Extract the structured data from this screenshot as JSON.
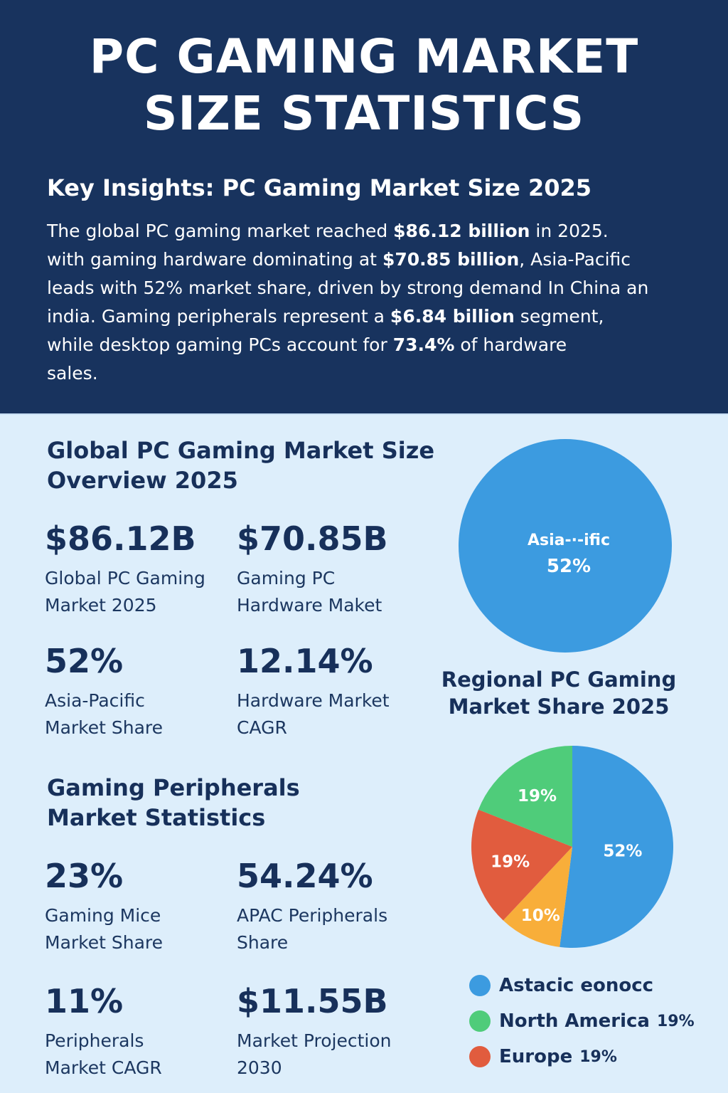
{
  "header": {
    "title_lines": [
      "PC GAMING MARKET",
      "SIZE STATISTICS"
    ],
    "insights_title": "Key Insights: PC Gaming Market Size 2025",
    "insights_lines": [
      [
        {
          "t": "The global PC gaming market reached ",
          "b": false
        },
        {
          "t": "$86.12 billion",
          "b": true
        },
        {
          "t": " in 2025.",
          "b": false
        }
      ],
      [
        {
          "t": "with gaming hardware dominating at ",
          "b": false
        },
        {
          "t": "$70.85 billion",
          "b": true
        },
        {
          "t": ", Asia-Pacific",
          "b": false
        }
      ],
      [
        {
          "t": "leads with 52% market share, driven by strong demand In China an",
          "b": false
        }
      ],
      [
        {
          "t": "india. Gaming peripherals represent a ",
          "b": false
        },
        {
          "t": "$6.84 billion",
          "b": true
        },
        {
          "t": " segment,",
          "b": false
        }
      ],
      [
        {
          "t": "while desktop gaming PCs account for ",
          "b": false
        },
        {
          "t": "73.4%",
          "b": true
        },
        {
          "t": " of hardware",
          "b": false
        }
      ],
      [
        {
          "t": "sales.",
          "b": false
        }
      ]
    ]
  },
  "overview": {
    "title_lines": [
      "Global PC Gaming Market Size",
      "Overview 2025"
    ],
    "stats": [
      {
        "value": "$86.12B",
        "label_lines": [
          "Global PC Gaming",
          "Market 2025"
        ]
      },
      {
        "value": "$70.85B",
        "label_lines": [
          "Gaming PC",
          "Hardware Maket"
        ]
      },
      {
        "value": "52%",
        "label_lines": [
          "Asia-Pacific",
          "Market Share"
        ]
      },
      {
        "value": "12.14%",
        "label_lines": [
          "Hardware Market",
          "CAGR"
        ]
      }
    ]
  },
  "peripherals": {
    "title_lines": [
      "Gaming Peripherals",
      "Market Statistics"
    ],
    "stats": [
      {
        "value": "23%",
        "label_lines": [
          "Gaming Mice",
          "Market Share"
        ]
      },
      {
        "value": "54.24%",
        "label_lines": [
          "APAC Peripherals",
          "Share"
        ]
      },
      {
        "value": "11%",
        "label_lines": [
          "Peripherals",
          "Market CAGR"
        ]
      },
      {
        "value": "$11.55B",
        "label_lines": [
          "Market Projection",
          "2030"
        ]
      }
    ]
  },
  "chart_data": [
    {
      "type": "pie",
      "title": "",
      "slices": [
        {
          "label": "Asia-·-ific",
          "value": 52,
          "display": "52%",
          "color": "#3c9be0"
        }
      ]
    },
    {
      "type": "pie",
      "title": "Regional PC Gaming Market Share 2025",
      "title_lines": [
        "Regional PC Gaming",
        "Market Share 2025"
      ],
      "slices": [
        {
          "value": 52,
          "display": "52%",
          "color": "#3c9be0"
        },
        {
          "value": 10,
          "display": "10%",
          "color": "#f8ae3a"
        },
        {
          "value": 19,
          "display": "19%",
          "color": "#e15c3e"
        },
        {
          "value": 19,
          "display": "19%",
          "color": "#4fcc7a"
        }
      ],
      "legend": [
        {
          "name": "Astacic eonocc",
          "value": "",
          "color": "#3c9be0"
        },
        {
          "name": "North America",
          "value": "19%",
          "color": "#4fcc7a"
        },
        {
          "name": "Europe",
          "value": "19%",
          "color": "#e15c3e"
        }
      ]
    }
  ]
}
